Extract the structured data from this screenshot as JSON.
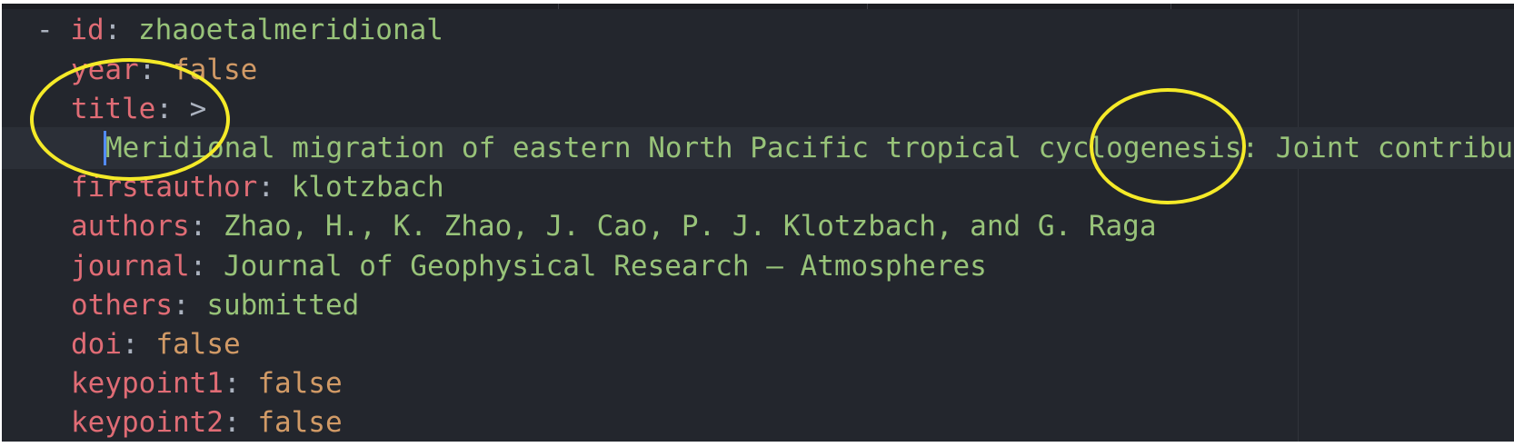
{
  "editor": {
    "lines": [
      {
        "dash": "- ",
        "key": "id",
        "sep": ": ",
        "value": "zhaoetalmeridional",
        "value_type": "str"
      },
      {
        "key": "year",
        "sep": ": ",
        "value": "false",
        "value_type": "bool"
      },
      {
        "key": "title",
        "sep": ": ",
        "value": ">",
        "value_type": "punct"
      },
      {
        "value": "Meridional migration of eastern North Pacific tropical cyclogenesis: Joint contribut",
        "value_type": "str"
      },
      {
        "key": "firstauthor",
        "sep": ": ",
        "value": "klotzbach",
        "value_type": "str"
      },
      {
        "key": "authors",
        "sep": ": ",
        "value": "Zhao, H., K. Zhao, J. Cao, P. J. Klotzbach, and G. Raga",
        "value_type": "str"
      },
      {
        "key": "journal",
        "sep": ": ",
        "value": "Journal of Geophysical Research – Atmospheres",
        "value_type": "str"
      },
      {
        "key": "others",
        "sep": ": ",
        "value": "submitted",
        "value_type": "str"
      },
      {
        "key": "doi",
        "sep": ": ",
        "value": "false",
        "value_type": "bool"
      },
      {
        "key": "keypoint1",
        "sep": ": ",
        "value": "false",
        "value_type": "bool"
      },
      {
        "key": "keypoint2",
        "sep": ": ",
        "value": "false",
        "value_type": "bool"
      }
    ]
  },
  "colors": {
    "background": "#23262d",
    "key": "#e06c75",
    "string": "#98c379",
    "boolean": "#d19a66",
    "annotation_circle": "#f5ea28",
    "cursor": "#528bff"
  }
}
